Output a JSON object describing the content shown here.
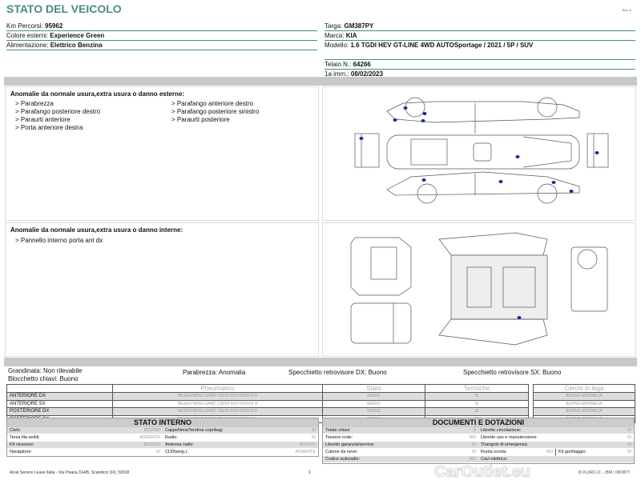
{
  "title": "STATO DEL VEICOLO",
  "rev": "Rev. A",
  "info_left": [
    {
      "label": "Km Percorsi:",
      "value": "95962"
    },
    {
      "label": "Colore esterni:",
      "value": "Experience Green"
    },
    {
      "label": "Alimentazione:",
      "value": "Elettrico Benzina"
    }
  ],
  "info_right": [
    {
      "label": "Targa:",
      "value": "GM387PY"
    },
    {
      "label": "Marca:",
      "value": "KIA"
    },
    {
      "label": "Modello:",
      "value": "1.6 TGDI HEV GT-LINE 4WD AUTOSportage / 2021 / 5P / SUV"
    },
    {
      "label": "Telaio N.:",
      "value": "64266"
    },
    {
      "label": "1a imm.:",
      "value": "08/02/2023"
    }
  ],
  "exterior": {
    "title": "Anomalie da normale usura,extra usura o danno esterne:",
    "col1": [
      "> Parabrezza",
      "> Parafango posteriore destro",
      "> Paraurti anteriore",
      "> Porta anteriore destra"
    ],
    "col2": [
      "> Parafango anteriore destro",
      "> Parafango posteriore sinistro",
      "> Paraurti posteriore"
    ]
  },
  "interior": {
    "title": "Anomalie da normale usura,extra usura o danno interne:",
    "items": [
      "> Pannello interno porta ant dx"
    ]
  },
  "damage_color": "#1a2a9a",
  "status": {
    "grandinata": "Grandinata: Non rilevabile",
    "blocchetto": "Blocchetto chiavi: Buono",
    "parabrezza": "Parabrezza: Anomalia",
    "spec_dx": "Specchietto retrovisore DX: Buono",
    "spec_sx": "Specchietto retrovisore SX: Buono"
  },
  "tires": {
    "headers": [
      "",
      "Pneumatico",
      "Stato",
      "Termiche"
    ],
    "rows": [
      {
        "pos": "ANTERIORE DX",
        "tire": "NEXEN WING GARD 235/55 R18 000/104 H",
        "stato": "MEDIO",
        "termiche": "SI"
      },
      {
        "pos": "ANTERIORE SX",
        "tire": "NEXEN WING GARD 235/55 R18 000/104 H",
        "stato": "MEDIO",
        "termiche": "SI"
      },
      {
        "pos": "POSTERIORE DX",
        "tire": "NEXEN WING GARD 235/55 R18 000/104 H",
        "stato": "MEDIO",
        "termiche": "SI"
      },
      {
        "pos": "POSTERIORE SX",
        "tire": "NEXEN WING GARD 235/55 R18 000/104 H",
        "stato": "MEDIO",
        "termiche": "SI"
      }
    ],
    "cerchi_header": "Cerchi in lega",
    "cerchi": [
      "BUONO ANOMALIA",
      "BUONO ANOMALIA",
      "BUONO ANOMALIA",
      "BUONO ANOMALIA"
    ]
  },
  "stato_interno": {
    "title": "STATO INTERNO",
    "cells": [
      {
        "l": "Cielo:",
        "v": "BUONO"
      },
      {
        "l": "Cappelliera/Tendina copribag:",
        "v": "SI"
      },
      {
        "l": "Terza fila sedili:",
        "v": "ASSENTE"
      },
      {
        "l": "Radio:",
        "v": "SI"
      },
      {
        "l": "Kit vivavoce:",
        "v": "BUONO"
      },
      {
        "l": "Antenna radio:",
        "v": "BUONO"
      },
      {
        "l": "Navigatore:",
        "v": "SI"
      },
      {
        "l": "CD(Navig.):",
        "v": "ASSENTE"
      }
    ]
  },
  "documenti": {
    "title": "DOCUMENTI E DOTAZIONI",
    "cells": [
      {
        "l": "Totale chiavi:",
        "v": "2"
      },
      {
        "l": "Libretto circolazione:",
        "v": "SI"
      },
      {
        "l": "Tessere code:",
        "v": "NO"
      },
      {
        "l": "Libretto uso e manutenzione:",
        "v": "SI"
      },
      {
        "l": "Libretto garanzia/service:",
        "v": "SI"
      },
      {
        "l": "Triangolo di emergenza:",
        "v": "SI"
      },
      {
        "l": "Catene da neve:",
        "v": "SI"
      },
      {
        "l": "Ruota scorta:",
        "v": "NO"
      },
      {
        "l": "Codice autoradio:",
        "v": "NO"
      },
      {
        "l": "Cavi elettrico:",
        "v": ""
      }
    ],
    "kit": {
      "l": "Kit gonfiaggio:",
      "v": "SI"
    }
  },
  "footer": "Arval Service Lease Italia - Via Pisana 314/B, Scandicci (FI), 50018",
  "page": "1",
  "watermark": "CarOutlet.eu",
  "id_line": "ID KU/RO.2/..../BM | 08/08/7/"
}
